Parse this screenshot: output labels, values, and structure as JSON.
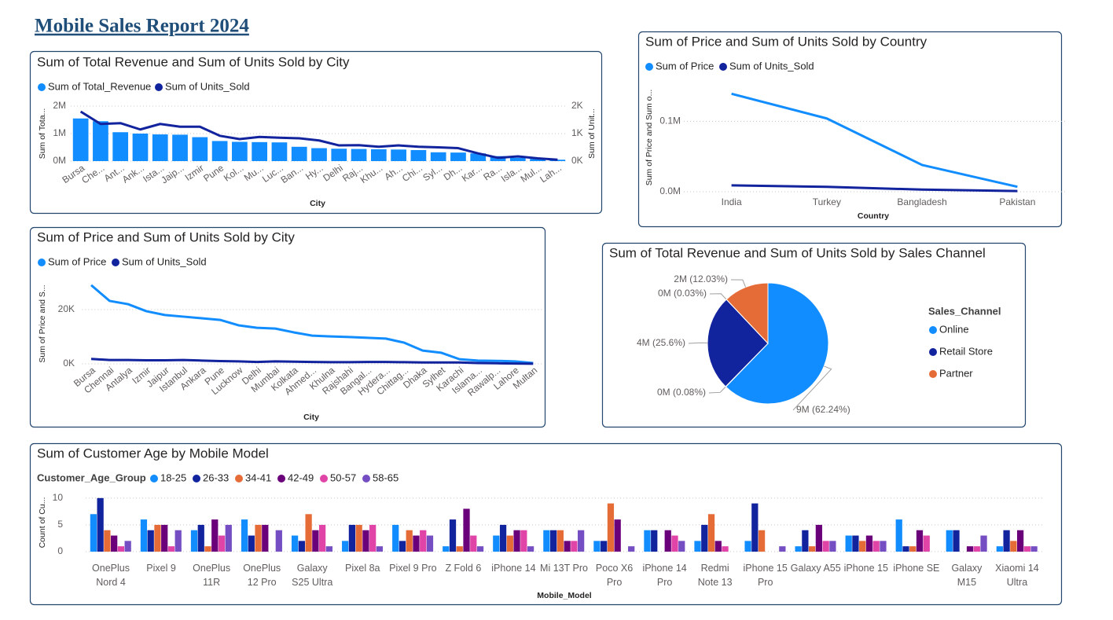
{
  "title": "Mobile Sales Report 2024",
  "chart_data": [
    {
      "type": "combo",
      "title": "Sum of Total Revenue and Sum of Units Sold by City",
      "xlabel": "City",
      "ylabel": "Sum of Tota...",
      "y2label": "Sum of Unit...",
      "categories": [
        "Bursa",
        "Che...",
        "Ant...",
        "Ank...",
        "Ista...",
        "Jaip...",
        "Izmir",
        "Pune",
        "Kol...",
        "Mu...",
        "Luc...",
        "Ban...",
        "Hy...",
        "Delhi",
        "Raj...",
        "Khu...",
        "Ah...",
        "Chi...",
        "Syl...",
        "Dh...",
        "Kar...",
        "Ra...",
        "Isla...",
        "Mul...",
        "Lah..."
      ],
      "series": [
        {
          "name": "Sum of Total_Revenue",
          "kind": "bar",
          "axis": "y",
          "color": "#118DFF",
          "values": [
            1550000,
            1450000,
            1050000,
            1000000,
            970000,
            960000,
            870000,
            730000,
            700000,
            690000,
            680000,
            520000,
            470000,
            450000,
            440000,
            430000,
            420000,
            400000,
            320000,
            310000,
            280000,
            180000,
            120000,
            80000,
            50000
          ]
        },
        {
          "name": "Sum of Units_Sold",
          "kind": "line",
          "axis": "y2",
          "color": "#12239E",
          "values": [
            1800,
            1350,
            1380,
            1150,
            1350,
            1250,
            1250,
            920,
            800,
            880,
            850,
            830,
            750,
            570,
            580,
            520,
            570,
            520,
            500,
            470,
            280,
            120,
            170,
            100,
            50
          ]
        }
      ],
      "ylim": [
        0,
        2000000
      ],
      "yticks": [
        {
          "value": 0,
          "label": "0M"
        },
        {
          "value": 1000000,
          "label": "1M"
        },
        {
          "value": 2000000,
          "label": "2M"
        }
      ],
      "y2lim": [
        0,
        2000
      ],
      "y2ticks": [
        {
          "value": 0,
          "label": "0K"
        },
        {
          "value": 1000,
          "label": "1K"
        },
        {
          "value": 2000,
          "label": "2K"
        }
      ],
      "grid": true,
      "legend": "top-left"
    },
    {
      "type": "line",
      "title": "Sum of Price and Sum of Units Sold by Country",
      "xlabel": "Country",
      "ylabel": "Sum of Price and Sum o...",
      "categories": [
        "India",
        "Turkey",
        "Bangladesh",
        "Pakistan"
      ],
      "series": [
        {
          "name": "Sum of Price",
          "color": "#118DFF",
          "values": [
            139000,
            104000,
            38000,
            7000
          ]
        },
        {
          "name": "Sum of Units_Sold",
          "color": "#12239E",
          "values": [
            9000,
            7000,
            3000,
            1000
          ]
        }
      ],
      "ylim": [
        0,
        155000
      ],
      "yticks": [
        {
          "value": 0,
          "label": "0.0M"
        },
        {
          "value": 100000,
          "label": "0.1M"
        }
      ],
      "grid": true,
      "legend": "top-left"
    },
    {
      "type": "line",
      "title": "Sum of Price and Sum of Units Sold by City",
      "xlabel": "City",
      "ylabel": "Sum of Price and S...",
      "categories": [
        "Bursa",
        "Chennai",
        "Antalya",
        "Izmir",
        "Jaipur",
        "Istanbul",
        "Ankara",
        "Pune",
        "Lucknow",
        "Delhi",
        "Mumbai",
        "Kolkata",
        "Ahmed...",
        "Khulna",
        "Rajshahi",
        "Bangal...",
        "Hydera...",
        "Chittag...",
        "Dhaka",
        "Sylhet",
        "Karachi",
        "Islama...",
        "Rawalp...",
        "Lahore",
        "Multan"
      ],
      "series": [
        {
          "name": "Sum of Price",
          "color": "#118DFF",
          "values": [
            29000,
            23200,
            22000,
            19400,
            18000,
            17400,
            16800,
            16200,
            14200,
            13300,
            13000,
            11600,
            10400,
            10100,
            9900,
            9600,
            9300,
            7800,
            4900,
            4100,
            1700,
            1200,
            1100,
            900,
            300
          ]
        },
        {
          "name": "Sum of Units_Sold",
          "color": "#12239E",
          "values": [
            1800,
            1400,
            1400,
            1300,
            1300,
            1400,
            1200,
            1000,
            900,
            700,
            900,
            800,
            700,
            600,
            600,
            700,
            700,
            600,
            500,
            500,
            500,
            300,
            200,
            100,
            50
          ]
        }
      ],
      "ylim": [
        0,
        31000
      ],
      "yticks": [
        {
          "value": 0,
          "label": "0K"
        },
        {
          "value": 20000,
          "label": "20K"
        }
      ],
      "grid": true,
      "legend": "top-left"
    },
    {
      "type": "pie",
      "title": "Sum of Total Revenue and Sum of Units Sold by Sales Channel",
      "legend_title": "Sales_Channel",
      "categories": [
        "Online",
        null,
        "Retail Store",
        null,
        "Partner"
      ],
      "values": [
        62.24,
        0.08,
        25.6,
        0.03,
        12.03
      ],
      "value_labels": [
        "9M (62.24%)",
        "0M (0.08%)",
        "4M (25.6%)",
        "0M (0.03%)",
        "2M (12.03%)"
      ],
      "colors": [
        "#118DFF",
        "#6B007B",
        "#12239E",
        "#E044A7",
        "#E66C37"
      ],
      "legend": "right"
    },
    {
      "type": "bar",
      "title": "Sum of Customer Age by Mobile Model",
      "xlabel": "Mobile_Model",
      "ylabel": "Count of Cu...",
      "legend_title": "Customer_Age_Group",
      "categories": [
        "OnePlus Nord 4",
        "Pixel 9",
        "OnePlus 11R",
        "OnePlus 12 Pro",
        "Galaxy S25 Ultra",
        "Pixel 8a",
        "Pixel 9 Pro",
        "Z Fold 6",
        "iPhone 14",
        "Mi 13T Pro",
        "Poco X6 Pro",
        "iPhone 14 Pro",
        "Redmi Note 13",
        "iPhone 15 Pro",
        "Galaxy A55",
        "iPhone 15",
        "iPhone SE",
        "Galaxy M15",
        "Xiaomi 14 Ultra"
      ],
      "series": [
        {
          "name": "18-25",
          "color": "#118DFF",
          "values": [
            7,
            6,
            4,
            6,
            3,
            2,
            5,
            1,
            3,
            4,
            2,
            4,
            2,
            2,
            1,
            3,
            6,
            4,
            1
          ]
        },
        {
          "name": "26-33",
          "color": "#12239E",
          "values": [
            10,
            4,
            5,
            3,
            2,
            5,
            2,
            6,
            5,
            4,
            2,
            4,
            5,
            9,
            4,
            3,
            1,
            4,
            4
          ]
        },
        {
          "name": "34-41",
          "color": "#E66C37",
          "values": [
            4,
            5,
            1,
            5,
            7,
            5,
            4,
            1,
            3,
            4,
            9,
            0,
            7,
            4,
            1,
            2,
            1,
            0,
            2
          ]
        },
        {
          "name": "42-49",
          "color": "#6B007B",
          "values": [
            3,
            5,
            6,
            5,
            4,
            4,
            3,
            8,
            4,
            2,
            6,
            4,
            2,
            0,
            5,
            3,
            4,
            1,
            4
          ]
        },
        {
          "name": "50-57",
          "color": "#E044A7",
          "values": [
            1,
            1,
            3,
            0,
            5,
            5,
            4,
            3,
            4,
            2,
            0,
            3,
            1,
            0,
            2,
            2,
            3,
            1,
            1
          ]
        },
        {
          "name": "58-65",
          "color": "#744EC2",
          "values": [
            2,
            4,
            5,
            4,
            1,
            1,
            3,
            1,
            1,
            4,
            1,
            2,
            0,
            1,
            2,
            2,
            0,
            3,
            1
          ]
        }
      ],
      "ylim": [
        0,
        11
      ],
      "yticks": [
        0,
        5,
        10
      ],
      "grid": true,
      "legend": "top-left"
    }
  ]
}
